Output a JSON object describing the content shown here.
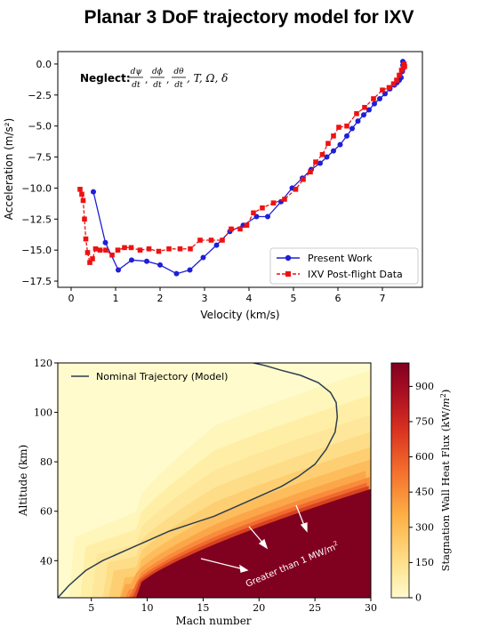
{
  "title": "Planar 3 DoF trajectory model for IXV",
  "chart_data": [
    {
      "type": "line",
      "xlabel": "Velocity (km/s)",
      "ylabel": "Acceleration (m/s²)",
      "xlim": [
        -0.3,
        7.9
      ],
      "ylim": [
        -18.0,
        1.0
      ],
      "xticks": [
        "0",
        "1",
        "2",
        "3",
        "4",
        "5",
        "6",
        "7"
      ],
      "yticks": [
        "0.0",
        "−2.5",
        "−5.0",
        "−7.5",
        "−10.0",
        "−12.5",
        "−15.0",
        "−17.5"
      ],
      "annotation": "Neglect: dψ/dt, dϕ/dt, dθ/dt, T, Ω, δ",
      "annotation_parts": {
        "label": "Neglect:",
        "f1n": "dψ",
        "f2n": "dϕ",
        "f3n": "dθ",
        "den": "dt",
        "rest": ", T, Ω, δ"
      },
      "legend_position": "lower-right",
      "grid": false,
      "series": [
        {
          "name": "Present Work",
          "color": "#1f1fd6",
          "marker": "circle",
          "x": [
            0.5,
            0.77,
            1.06,
            1.36,
            1.7,
            2.0,
            2.37,
            2.67,
            2.97,
            3.27,
            3.57,
            3.87,
            4.17,
            4.42,
            4.72,
            4.97,
            5.2,
            5.4,
            5.6,
            5.75,
            5.9,
            6.05,
            6.2,
            6.32,
            6.45,
            6.58,
            6.7,
            6.82,
            6.94,
            7.06,
            7.17,
            7.27,
            7.33,
            7.38,
            7.42,
            7.45,
            7.46,
            7.46
          ],
          "y": [
            -10.3,
            -14.4,
            -16.6,
            -15.8,
            -15.9,
            -16.2,
            -16.9,
            -16.6,
            -15.6,
            -14.6,
            -13.5,
            -13.0,
            -12.3,
            -12.3,
            -11.1,
            -10.0,
            -9.2,
            -8.5,
            -8.0,
            -7.5,
            -7.0,
            -6.5,
            -5.8,
            -5.2,
            -4.6,
            -4.1,
            -3.7,
            -3.2,
            -2.8,
            -2.4,
            -2.0,
            -1.7,
            -1.5,
            -1.3,
            -1.1,
            -0.6,
            -0.1,
            0.2
          ]
        },
        {
          "name": "IXV Post-flight Data",
          "color": "#ee1111",
          "marker": "square",
          "x": [
            0.2,
            0.24,
            0.27,
            0.3,
            0.33,
            0.37,
            0.42,
            0.48,
            0.55,
            0.65,
            0.78,
            0.92,
            1.05,
            1.2,
            1.35,
            1.55,
            1.75,
            1.97,
            2.2,
            2.45,
            2.68,
            2.9,
            3.15,
            3.4,
            3.6,
            3.8,
            3.95,
            4.1,
            4.3,
            4.55,
            4.8,
            5.05,
            5.22,
            5.38,
            5.5,
            5.65,
            5.78,
            5.9,
            6.02,
            6.2,
            6.42,
            6.6,
            6.8,
            7.0,
            7.15,
            7.25,
            7.32,
            7.38,
            7.43,
            7.47,
            7.5,
            7.49
          ],
          "y": [
            -10.1,
            -10.5,
            -11.0,
            -12.5,
            -14.1,
            -15.2,
            -16.0,
            -15.7,
            -14.9,
            -15.0,
            -15.0,
            -15.4,
            -15.0,
            -14.8,
            -14.8,
            -15.0,
            -14.9,
            -15.1,
            -14.9,
            -14.9,
            -14.9,
            -14.2,
            -14.2,
            -14.2,
            -13.3,
            -13.3,
            -13.0,
            -12.0,
            -11.6,
            -11.2,
            -10.9,
            -10.1,
            -9.3,
            -8.7,
            -7.9,
            -7.3,
            -6.4,
            -5.8,
            -5.1,
            -5.0,
            -4.0,
            -3.5,
            -2.8,
            -2.1,
            -1.9,
            -1.6,
            -1.3,
            -0.9,
            -0.5,
            -0.3,
            -0.2,
            0.0
          ]
        }
      ]
    },
    {
      "type": "heatmap",
      "xlabel": "Mach number",
      "ylabel": "Altitude (km)",
      "xlim": [
        2,
        30
      ],
      "ylim": [
        25,
        120
      ],
      "xticks": [
        "5",
        "10",
        "15",
        "20",
        "25",
        "30"
      ],
      "yticks": [
        "40",
        "60",
        "80",
        "100",
        "120"
      ],
      "colorbar": {
        "label": "Stagnation Wall Heat Flux (kW/m²)",
        "label_main": "Stagnation Wall Heat Flux (kW/",
        "label_unit": "m",
        "label_exp": "2",
        "label_end": ")",
        "range": [
          0,
          1000
        ],
        "ticks": [
          "0",
          "150",
          "300",
          "450",
          "600",
          "750",
          "900"
        ],
        "colors": [
          "#fffbcd",
          "#fee08b",
          "#fdb045",
          "#f36b2c",
          "#d7301f",
          "#a80e22",
          "#800020"
        ]
      },
      "annotation": "Greater than 1 MW/m²",
      "annotation_parts": {
        "main": "Greater than 1 MW/m",
        "exp": "2"
      },
      "legend_position": "top-left",
      "series": [
        {
          "name": "Nominal Trajectory (Model)",
          "color": "#2c3e50",
          "mach": [
            2.0,
            3.0,
            4.5,
            6.0,
            8.0,
            10.0,
            12.0,
            14.0,
            16.0,
            18.0,
            20.0,
            22.0,
            23.5,
            25.0,
            26.0,
            26.8,
            27.0,
            26.9,
            26.4,
            25.3,
            23.7,
            22.0,
            20.5,
            19.5
          ],
          "altitude": [
            25,
            30,
            36,
            40,
            44,
            48,
            52,
            55,
            58,
            62,
            66,
            70,
            74,
            79,
            85,
            92,
            98,
            104,
            108,
            112,
            115,
            117,
            119,
            120
          ]
        }
      ]
    }
  ]
}
